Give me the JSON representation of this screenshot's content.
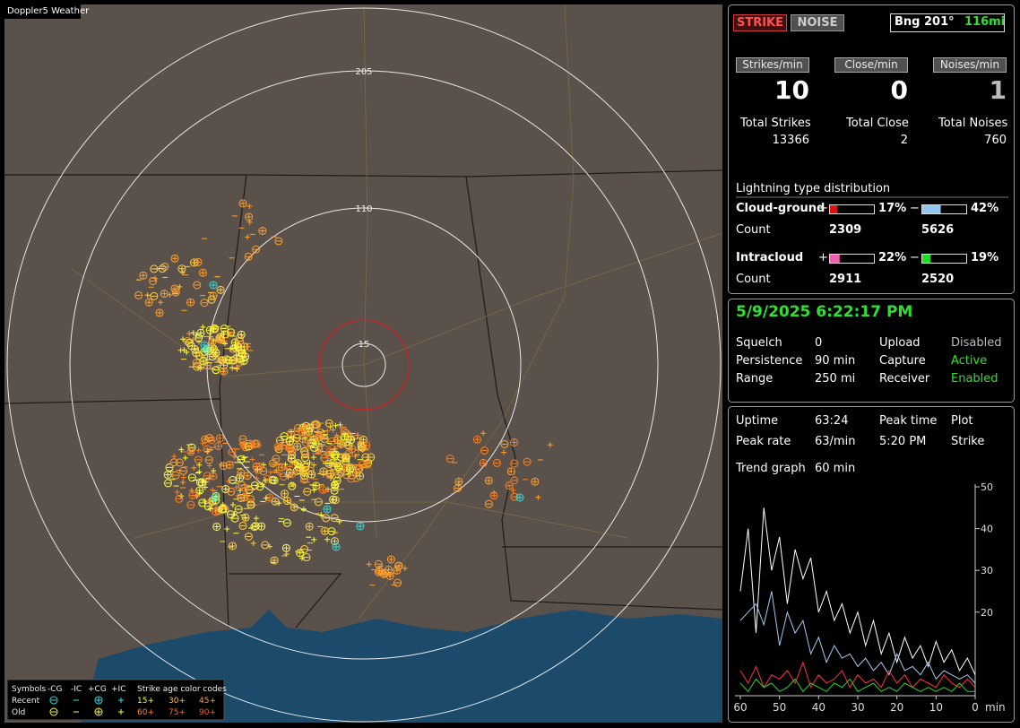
{
  "title_bar": "Doppler5 Weather",
  "map": {
    "range_labels": [
      "205",
      "110",
      "15"
    ],
    "legend": {
      "header": [
        "Symbols",
        "-CG",
        "-IC",
        "+CG",
        "+IC",
        "Strike age color codes"
      ],
      "recent": {
        "label": "Recent",
        "ages": [
          "15+",
          "30+",
          "45+"
        ]
      },
      "old": {
        "label": "Old",
        "ages": [
          "60+",
          "75+",
          "90+"
        ]
      }
    }
  },
  "header": {
    "strike": "STRIKE",
    "noise": "NOISE",
    "bearing": "Bng 201°",
    "distance": "116mi"
  },
  "rates": [
    {
      "label": "Strikes/min",
      "value": 10,
      "total_label": "Total Strikes",
      "total": 13366
    },
    {
      "label": "Close/min",
      "value": 0,
      "total_label": "Total Close",
      "total": 2
    },
    {
      "label": "Noises/min",
      "value": 1,
      "total_label": "Total Noises",
      "total": 760
    }
  ],
  "distribution": {
    "title": "Lightning type distribution",
    "count_label": "Count",
    "rows": [
      {
        "name": "Cloud-ground",
        "pos": {
          "sign": "+",
          "percent": 17,
          "percent_label": "17%",
          "count": 2309,
          "color": "#e01010"
        },
        "neg": {
          "sign": "−",
          "percent": 42,
          "percent_label": "42%",
          "count": 5626,
          "color": "#90c8f0"
        }
      },
      {
        "name": "Intracloud",
        "pos": {
          "sign": "+",
          "percent": 22,
          "percent_label": "22%",
          "count": 2911,
          "color": "#f060b0"
        },
        "neg": {
          "sign": "−",
          "percent": 19,
          "percent_label": "19%",
          "count": 2520,
          "color": "#20e020"
        }
      }
    ]
  },
  "status": {
    "datetime": "5/9/2025 6:22:17 PM",
    "rows": [
      [
        "Squelch",
        "0",
        "Upload",
        "Disabled"
      ],
      [
        "Persistence",
        "90 min",
        "Capture",
        "Active"
      ],
      [
        "Range",
        "250 mi",
        "Receiver",
        "Enabled"
      ]
    ]
  },
  "stats": {
    "rows": [
      [
        "Uptime",
        "63:24",
        "Peak time",
        "Plot"
      ],
      [
        "Peak rate",
        "63/min",
        "5:20 PM",
        "Strike"
      ]
    ],
    "trend_label": "Trend graph",
    "trend_value": "60 min"
  },
  "chart_data": {
    "type": "line",
    "x_unit": "min",
    "xlim": [
      60,
      0
    ],
    "xticks": [
      60,
      50,
      40,
      30,
      20,
      10,
      0
    ],
    "ylim": [
      0,
      50
    ],
    "yticks": [
      20,
      30,
      40,
      50
    ],
    "x": [
      60,
      58,
      56,
      54,
      52,
      50,
      48,
      46,
      44,
      42,
      40,
      38,
      36,
      34,
      32,
      30,
      28,
      26,
      24,
      22,
      20,
      18,
      16,
      14,
      12,
      10,
      8,
      6,
      4,
      2,
      0
    ],
    "series": [
      {
        "color": "#ffffff",
        "values": [
          25,
          40,
          15,
          45,
          30,
          38,
          22,
          35,
          28,
          33,
          20,
          25,
          18,
          22,
          15,
          20,
          12,
          18,
          10,
          15,
          8,
          14,
          9,
          12,
          7,
          13,
          8,
          11,
          6,
          9,
          5
        ]
      },
      {
        "color": "#a8c8f0",
        "values": [
          18,
          20,
          22,
          17,
          25,
          12,
          20,
          15,
          18,
          10,
          14,
          8,
          12,
          9,
          10,
          7,
          9,
          6,
          8,
          5,
          10,
          6,
          7,
          5,
          8,
          4,
          6,
          5,
          4,
          5,
          3
        ]
      },
      {
        "color": "#ff3040",
        "values": [
          6,
          3,
          7,
          2,
          5,
          4,
          6,
          3,
          8,
          2,
          5,
          3,
          4,
          6,
          2,
          5,
          3,
          4,
          2,
          6,
          3,
          5,
          2,
          4,
          3,
          2,
          5,
          3,
          2,
          4,
          2
        ]
      },
      {
        "color": "#30d030",
        "values": [
          3,
          1,
          4,
          2,
          3,
          1,
          2,
          4,
          1,
          3,
          2,
          1,
          3,
          2,
          4,
          1,
          2,
          3,
          1,
          2,
          1,
          3,
          2,
          1,
          2,
          1,
          2,
          1,
          3,
          1,
          1
        ]
      }
    ]
  }
}
